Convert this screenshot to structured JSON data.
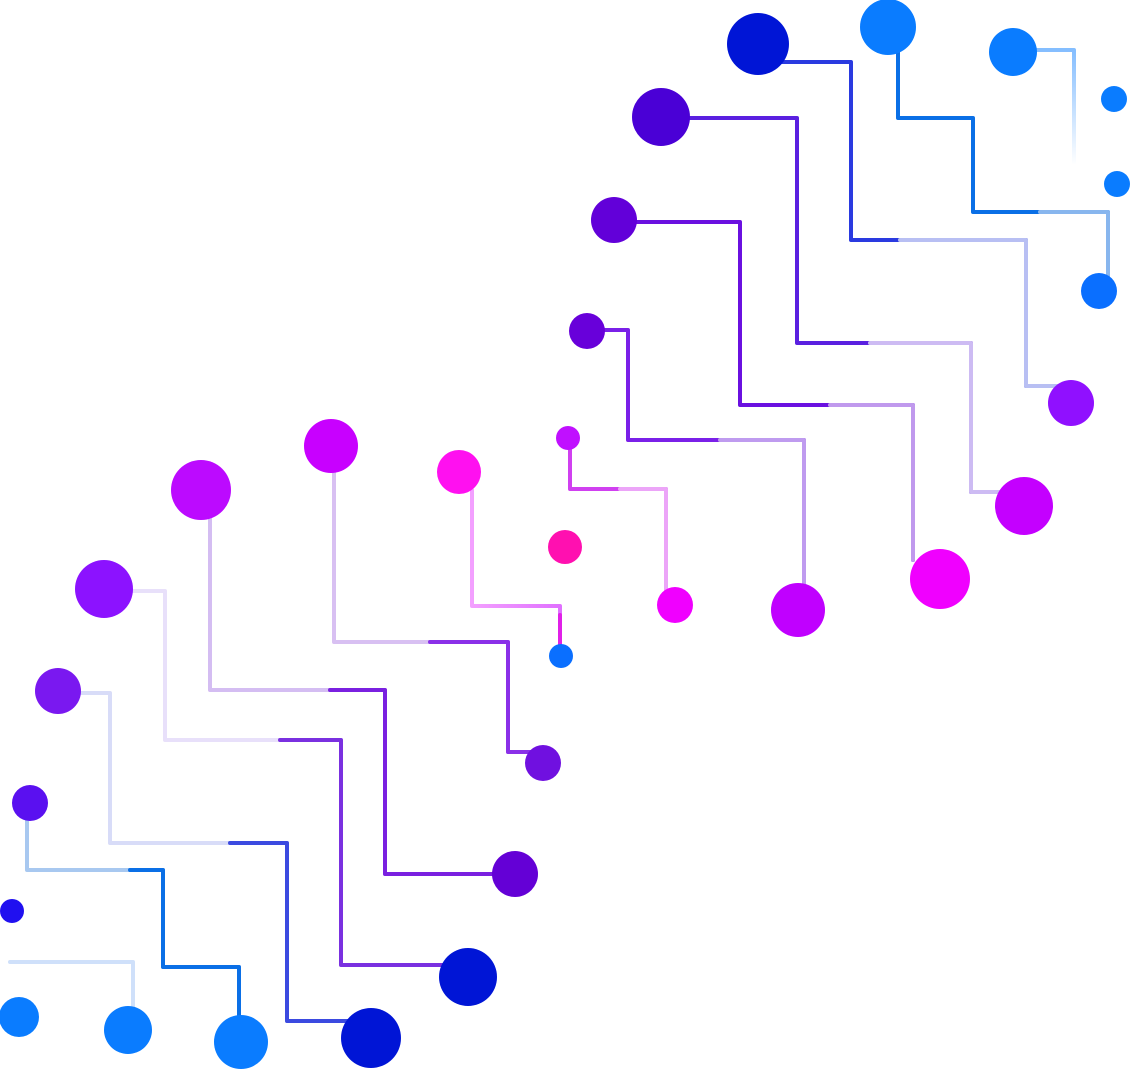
{
  "graphic": {
    "description_name": "circuit-trace-illustration",
    "colors": {
      "blue_dark": "#0015d6",
      "blue": "#0a6fe6",
      "blue_light": "#0a7cff",
      "indigo": "#4a00d6",
      "violet": "#6a00d9",
      "purple": "#8a10ff",
      "magenta": "#c400ff",
      "pink": "#ff00ff",
      "hot_pink": "#ff10b0"
    }
  }
}
